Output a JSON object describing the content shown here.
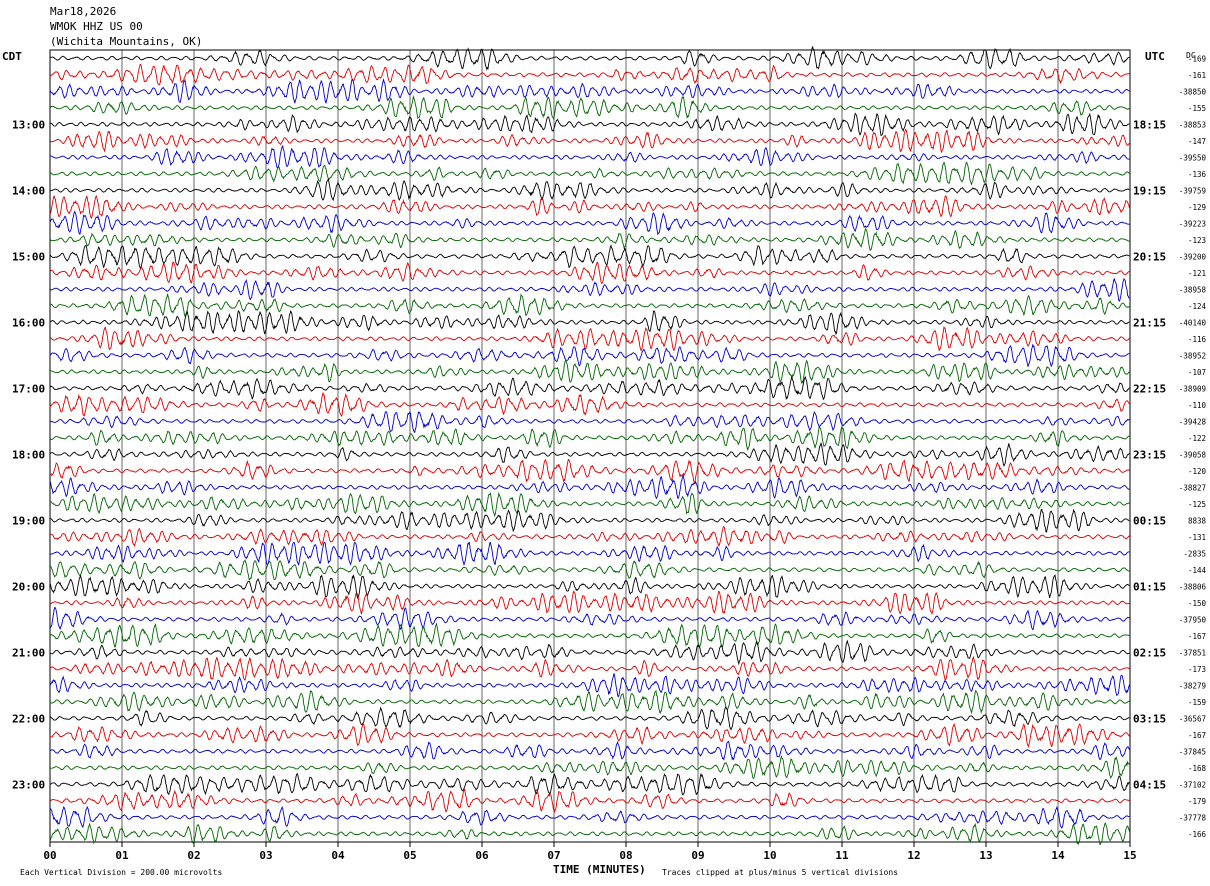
{
  "header": {
    "date": "Mar18,2026",
    "station": "WMOK HHZ US 00",
    "location": "(Wichita Mountains, OK)"
  },
  "left_tz": "CDT",
  "right_tz": "UTC",
  "dc_label": "DC",
  "footer": {
    "scale": "Each Vertical Division =  200.00 microvolts",
    "xlabel": "TIME (MINUTES)",
    "clip_note": "Traces clipped at plus/minus 5 vertical divisions"
  },
  "chart_data": {
    "type": "line",
    "title": "WMOK HHZ US 00",
    "xlabel": "TIME (MINUTES)",
    "x_ticks": [
      "00",
      "01",
      "02",
      "03",
      "04",
      "05",
      "06",
      "07",
      "08",
      "09",
      "10",
      "11",
      "12",
      "13",
      "14",
      "15"
    ],
    "xlim": [
      0,
      15
    ],
    "rows_per_hour": 4,
    "row_minutes": 15,
    "trace_colors": [
      "#000000",
      "#dd0000",
      "#0000cc",
      "#006600"
    ],
    "left_hour_labels": [
      "13:00",
      "14:00",
      "15:00",
      "16:00",
      "17:00",
      "18:00",
      "19:00",
      "20:00",
      "21:00",
      "22:00",
      "23:00"
    ],
    "right_hour_labels": [
      "18:15",
      "19:15",
      "20:15",
      "21:15",
      "22:15",
      "23:15",
      "00:15",
      "01:15",
      "02:15",
      "03:15",
      "04:15"
    ],
    "dc_offsets": [
      "-169",
      "-161",
      "-38850",
      "-155",
      "-38853",
      "-147",
      "-39550",
      "-136",
      "-39759",
      "-129",
      "-39223",
      "-123",
      "-39200",
      "-121",
      "-38958",
      "-124",
      "-40140",
      "-116",
      "-38952",
      "-107",
      "-38909",
      "-110",
      "-39428",
      "-122",
      "-39058",
      "-120",
      "-38827",
      "-125",
      "8838",
      "-131",
      "-2835",
      "-144",
      "-38806",
      "-150",
      "-37950",
      "-167",
      "-37851",
      "-173",
      "-38279",
      "-159",
      "-36567",
      "-167",
      "-37845",
      "-168",
      "-37102",
      "-179",
      "-37778",
      "-166"
    ],
    "events": [
      {
        "row": 0,
        "minute": 13.1,
        "amp": 1.6
      },
      {
        "row": 3,
        "minute": 6.8,
        "amp": 1.5
      },
      {
        "row": 3,
        "minute": 8.8,
        "amp": 1.2
      },
      {
        "row": 8,
        "minute": 3.8,
        "amp": 1.4
      },
      {
        "row": 10,
        "minute": 8.5,
        "amp": 1.3
      },
      {
        "row": 45,
        "minute": 5.5,
        "amp": 1.5
      }
    ]
  }
}
